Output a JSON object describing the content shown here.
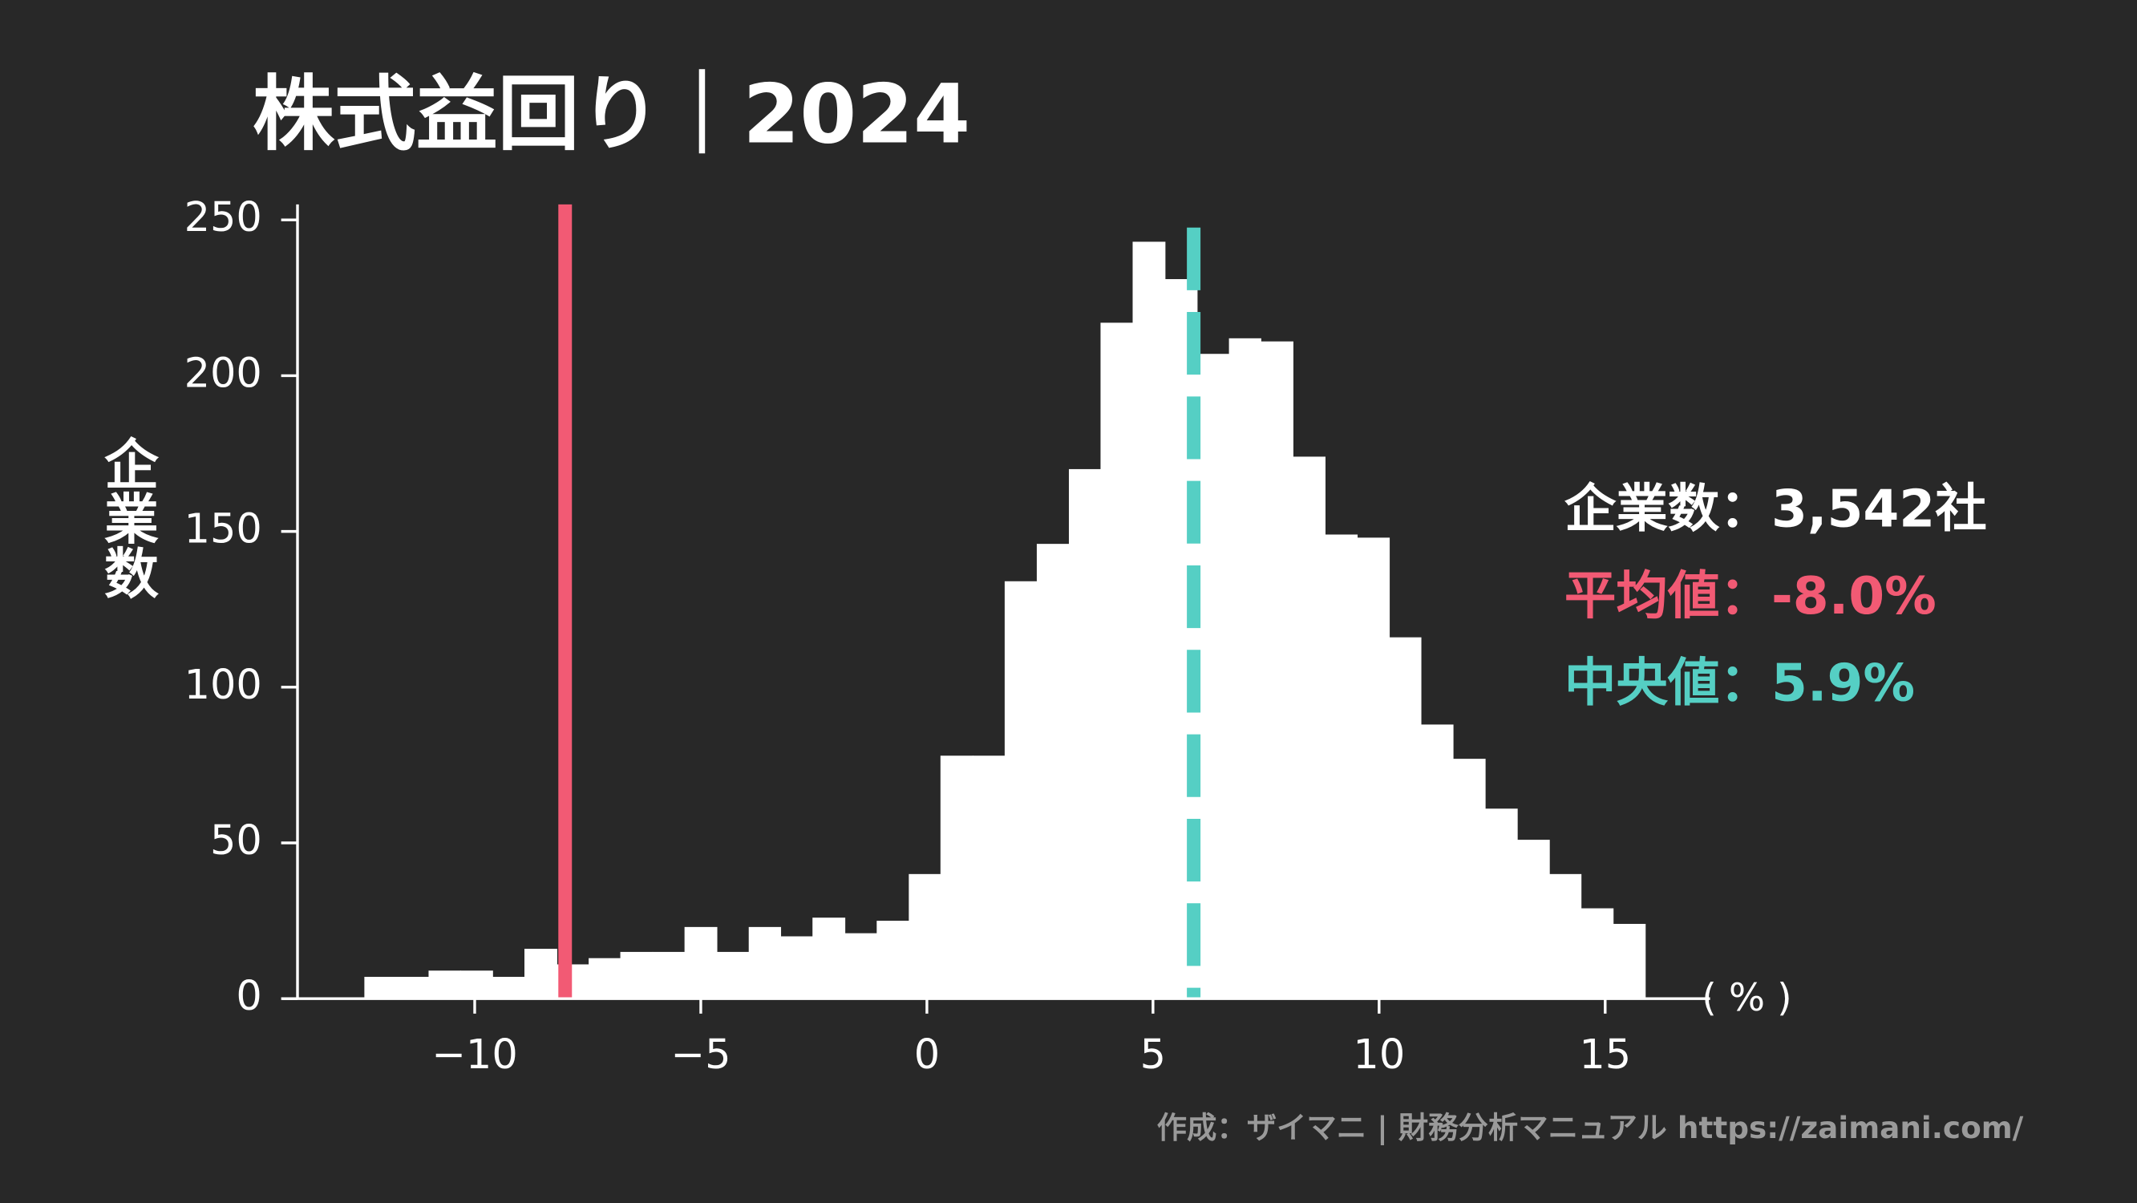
{
  "chart_data": {
    "type": "histogram",
    "title": "株式益回り｜2024",
    "y_label": "企業数",
    "x_unit": "( % )",
    "annotations": [
      "企業数：3,542社",
      "平均値：-8.0%",
      "中央値：5.9%"
    ],
    "credit": "作成：ザイマニ | 財務分析マニュアル https://zaimani.com/",
    "bins": [
      -12.44,
      -11.73,
      -11.02,
      -10.32,
      -9.61,
      -8.9,
      -8.19,
      -7.48,
      -6.78,
      -6.07,
      -5.36,
      -4.65,
      -3.94,
      -3.24,
      -2.53,
      -1.82,
      -1.11,
      -0.4,
      0.3,
      1.01,
      1.72,
      2.43,
      3.14,
      3.84,
      4.55,
      5.26,
      5.97,
      6.68,
      7.38,
      8.09,
      8.8,
      9.51,
      10.22,
      10.92,
      11.63,
      12.34,
      13.05,
      13.76,
      14.46,
      15.17,
      15.88
    ],
    "values": [
      7,
      7,
      9,
      9,
      7,
      16,
      11,
      13,
      15,
      15,
      23,
      15,
      23,
      20,
      26,
      21,
      25,
      40,
      78,
      78,
      134,
      146,
      170,
      217,
      243,
      231,
      207,
      212,
      211,
      174,
      149,
      148,
      116,
      88,
      77,
      61,
      51,
      40,
      29,
      24
    ],
    "color": "#ffffff",
    "mean": -8.0,
    "mean_color": "#f25a74",
    "median": 5.9,
    "median_color": "#55cfc4",
    "xlim": [
      -14.25,
      17.32
    ],
    "xticks": [
      {
        "value": -10,
        "label": "−10"
      },
      {
        "value": -5,
        "label": "−5"
      },
      0,
      5,
      10,
      15
    ],
    "ylim": [
      0,
      255
    ],
    "yticks": [
      0,
      50,
      100,
      150,
      200,
      250
    ]
  }
}
